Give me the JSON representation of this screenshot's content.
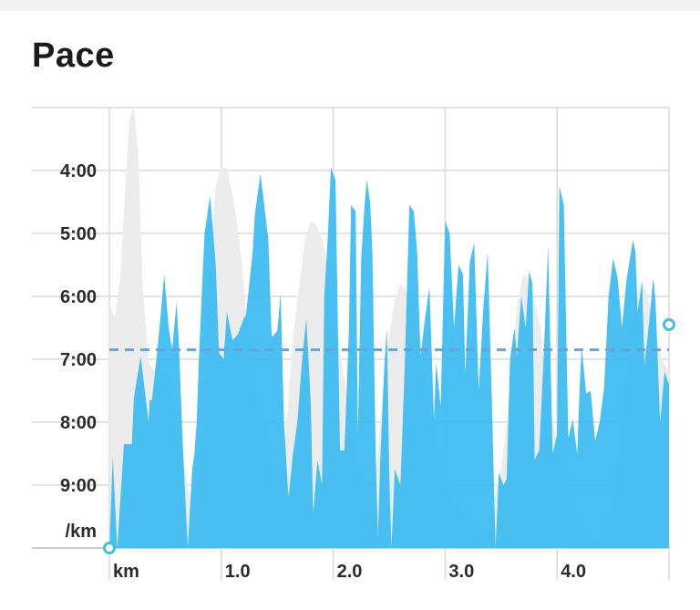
{
  "header": {
    "title": "Pace"
  },
  "colors": {
    "pace_fill": "#3fbdf0",
    "elevation_fill": "#ececec",
    "average_line": "#6aa3d6",
    "grid": "#d9d9df",
    "endpoint_marker": "#46bfdd"
  },
  "chart_data": {
    "type": "area",
    "title": "Pace",
    "x_unit": "km",
    "y_unit": "/km",
    "x_ticks": [
      1.0,
      2.0,
      3.0,
      4.0
    ],
    "x_tick_labels": [
      "1.0",
      "2.0",
      "3.0",
      "4.0"
    ],
    "y_ticks": [
      4,
      5,
      6,
      7,
      8,
      9
    ],
    "y_tick_labels": [
      "4:00",
      "5:00",
      "6:00",
      "7:00",
      "8:00",
      "9:00"
    ],
    "xlim": [
      0,
      5.0
    ],
    "ylim_min_per_km": [
      3.0,
      10.0
    ],
    "y_inverted": true,
    "grid": true,
    "average_pace_min_per_km": 6.85,
    "series": [
      {
        "x": [
          0.0,
          0.03,
          0.07,
          0.13,
          0.2,
          0.22,
          0.28,
          0.35,
          0.36,
          0.38,
          0.42,
          0.45,
          0.49,
          0.53,
          0.56,
          0.6,
          0.62,
          0.66,
          0.7,
          0.74,
          0.76,
          0.78,
          0.8,
          0.85,
          0.9,
          0.95,
          0.98,
          1.02,
          1.05,
          1.1,
          1.15,
          1.2,
          1.22,
          1.28,
          1.3,
          1.35,
          1.42,
          1.45,
          1.5,
          1.53,
          1.56,
          1.6,
          1.64,
          1.68,
          1.72,
          1.76,
          1.8,
          1.82,
          1.86,
          1.9,
          1.92,
          1.95,
          1.98,
          2.02,
          2.06,
          2.1,
          2.14,
          2.16,
          2.2,
          2.22,
          2.25,
          2.28,
          2.3,
          2.33,
          2.35,
          2.38,
          2.4,
          2.42,
          2.46,
          2.48,
          2.5,
          2.52,
          2.55,
          2.6,
          2.64,
          2.68,
          2.72,
          2.75,
          2.78,
          2.82,
          2.86,
          2.9,
          2.92,
          2.96,
          3.0,
          3.04,
          3.08,
          3.12,
          3.16,
          3.18,
          3.22,
          3.26,
          3.3,
          3.34,
          3.38,
          3.42,
          3.45,
          3.48,
          3.52,
          3.55,
          3.58,
          3.62,
          3.64,
          3.68,
          3.72,
          3.75,
          3.78,
          3.8,
          3.84,
          3.88,
          3.92,
          3.96,
          4.0,
          4.02,
          4.06,
          4.1,
          4.14,
          4.18,
          4.2,
          4.22,
          4.26,
          4.3,
          4.34,
          4.38,
          4.42,
          4.46,
          4.5,
          4.54,
          4.58,
          4.62,
          4.66,
          4.68,
          4.7,
          4.72,
          4.76,
          4.78,
          4.82,
          4.86,
          4.88,
          4.92,
          4.96,
          5.0
        ],
        "pace_min_per_km": [
          10.0,
          8.55,
          10.0,
          8.35,
          8.35,
          7.6,
          6.95,
          8.0,
          7.65,
          7.65,
          7.0,
          6.45,
          5.65,
          6.5,
          6.85,
          6.1,
          6.7,
          8.5,
          10.0,
          8.75,
          8.5,
          8.0,
          7.0,
          5.0,
          4.4,
          5.5,
          6.9,
          7.0,
          6.25,
          6.7,
          6.6,
          6.35,
          6.3,
          5.3,
          4.7,
          4.05,
          5.1,
          6.65,
          6.55,
          5.95,
          8.0,
          9.2,
          8.5,
          8.0,
          7.05,
          6.35,
          7.7,
          9.45,
          8.6,
          9.0,
          6.0,
          5.1,
          3.95,
          4.15,
          8.45,
          8.45,
          6.55,
          4.55,
          4.65,
          8.2,
          5.4,
          4.55,
          4.15,
          4.5,
          5.3,
          8.6,
          9.8,
          8.6,
          7.0,
          6.5,
          8.8,
          10.0,
          8.75,
          9.0,
          7.05,
          4.55,
          4.65,
          5.3,
          6.95,
          6.35,
          5.85,
          7.95,
          7.05,
          7.75,
          4.8,
          5.0,
          6.5,
          5.5,
          5.65,
          7.25,
          5.45,
          5.15,
          7.5,
          6.2,
          5.3,
          7.85,
          10.0,
          8.8,
          9.0,
          8.9,
          7.0,
          6.5,
          6.95,
          6.0,
          6.5,
          5.6,
          5.8,
          8.6,
          8.45,
          6.95,
          5.2,
          8.5,
          8.2,
          4.25,
          4.55,
          8.25,
          7.95,
          8.5,
          7.5,
          6.8,
          7.55,
          7.5,
          8.3,
          8.0,
          7.45,
          6.0,
          5.4,
          5.7,
          6.5,
          5.75,
          5.3,
          5.1,
          5.3,
          6.25,
          5.75,
          7.1,
          6.45,
          5.7,
          6.1,
          8.0,
          7.2,
          7.4
        ]
      }
    ],
    "elevation_background": {
      "x": [
        0.0,
        0.05,
        0.1,
        0.15,
        0.18,
        0.22,
        0.26,
        0.3,
        0.35,
        0.4,
        0.45,
        0.5,
        0.55,
        0.6,
        0.65,
        0.7,
        0.75,
        0.8,
        0.85,
        0.9,
        0.95,
        1.0,
        1.05,
        1.1,
        1.15,
        1.2,
        1.25,
        1.3,
        1.35,
        1.4,
        1.45,
        1.5,
        1.55,
        1.6,
        1.65,
        1.7,
        1.75,
        1.8,
        1.85,
        1.9,
        1.95,
        2.0,
        2.05,
        2.1,
        2.15,
        2.2,
        2.25,
        2.3,
        2.35,
        2.4,
        2.45,
        2.5,
        2.55,
        2.6,
        2.65,
        2.7,
        2.75,
        2.8,
        2.85,
        2.9,
        2.95,
        3.0,
        3.05,
        3.1,
        3.15,
        3.2,
        3.25,
        3.3,
        3.35,
        3.4,
        3.45,
        3.5,
        3.55,
        3.6,
        3.65,
        3.7,
        3.75,
        3.8,
        3.85,
        3.9,
        3.95,
        4.0,
        4.05,
        4.1,
        4.15,
        4.2,
        4.25,
        4.3,
        4.35,
        4.4,
        4.45,
        4.5,
        4.55,
        4.6,
        4.65,
        4.7,
        4.75,
        4.8,
        4.85,
        4.9,
        4.95,
        5.0
      ],
      "level": [
        0.55,
        0.52,
        0.62,
        0.85,
        0.97,
        1.0,
        0.88,
        0.58,
        0.42,
        0.4,
        0.38,
        0.4,
        0.37,
        0.3,
        0.22,
        0.14,
        0.08,
        0.1,
        0.35,
        0.66,
        0.82,
        0.86,
        0.86,
        0.8,
        0.72,
        0.6,
        0.45,
        0.38,
        0.33,
        0.28,
        0.2,
        0.14,
        0.2,
        0.34,
        0.5,
        0.6,
        0.7,
        0.74,
        0.73,
        0.7,
        0.64,
        0.56,
        0.46,
        0.38,
        0.3,
        0.22,
        0.17,
        0.13,
        0.12,
        0.22,
        0.38,
        0.48,
        0.56,
        0.6,
        0.58,
        0.56,
        0.5,
        0.42,
        0.36,
        0.3,
        0.22,
        0.17,
        0.12,
        0.1,
        0.08,
        0.06,
        0.04,
        0.02,
        0.02,
        0.08,
        0.12,
        0.18,
        0.28,
        0.44,
        0.56,
        0.62,
        0.6,
        0.56,
        0.5,
        0.38,
        0.3,
        0.24,
        0.18,
        0.14,
        0.1,
        0.06,
        0.04,
        0.02,
        0.0,
        0.02,
        0.04,
        0.1,
        0.22,
        0.36,
        0.48,
        0.56,
        0.6,
        0.58,
        0.52,
        0.46,
        0.42,
        0.4
      ]
    }
  }
}
